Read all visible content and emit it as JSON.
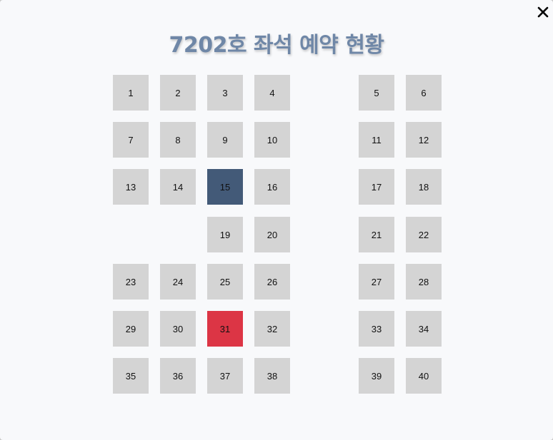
{
  "modal": {
    "title": "7202호 좌석 예약 현황",
    "close_icon": "close-icon"
  },
  "colors": {
    "available": "#d4d4d4",
    "selected": "#435a78",
    "reserved": "#dc3545",
    "title": "#6f87a7"
  },
  "seats": [
    {
      "label": "1",
      "status": "available"
    },
    {
      "label": "2",
      "status": "available"
    },
    {
      "label": "3",
      "status": "available"
    },
    {
      "label": "4",
      "status": "available"
    },
    {
      "label": "5",
      "status": "available"
    },
    {
      "label": "6",
      "status": "available"
    },
    {
      "label": "7",
      "status": "available"
    },
    {
      "label": "8",
      "status": "available"
    },
    {
      "label": "9",
      "status": "available"
    },
    {
      "label": "10",
      "status": "available"
    },
    {
      "label": "11",
      "status": "available"
    },
    {
      "label": "12",
      "status": "available"
    },
    {
      "label": "13",
      "status": "available"
    },
    {
      "label": "14",
      "status": "available"
    },
    {
      "label": "15",
      "status": "selected"
    },
    {
      "label": "16",
      "status": "available"
    },
    {
      "label": "17",
      "status": "available"
    },
    {
      "label": "18",
      "status": "available"
    },
    {
      "label": "19",
      "status": "available"
    },
    {
      "label": "20",
      "status": "available"
    },
    {
      "label": "21",
      "status": "available"
    },
    {
      "label": "22",
      "status": "available"
    },
    {
      "label": "23",
      "status": "available"
    },
    {
      "label": "24",
      "status": "available"
    },
    {
      "label": "25",
      "status": "available"
    },
    {
      "label": "26",
      "status": "available"
    },
    {
      "label": "27",
      "status": "available"
    },
    {
      "label": "28",
      "status": "available"
    },
    {
      "label": "29",
      "status": "available"
    },
    {
      "label": "30",
      "status": "available"
    },
    {
      "label": "31",
      "status": "reserved"
    },
    {
      "label": "32",
      "status": "available"
    },
    {
      "label": "33",
      "status": "available"
    },
    {
      "label": "34",
      "status": "available"
    },
    {
      "label": "35",
      "status": "available"
    },
    {
      "label": "36",
      "status": "available"
    },
    {
      "label": "37",
      "status": "available"
    },
    {
      "label": "38",
      "status": "available"
    },
    {
      "label": "39",
      "status": "available"
    },
    {
      "label": "40",
      "status": "available"
    }
  ]
}
